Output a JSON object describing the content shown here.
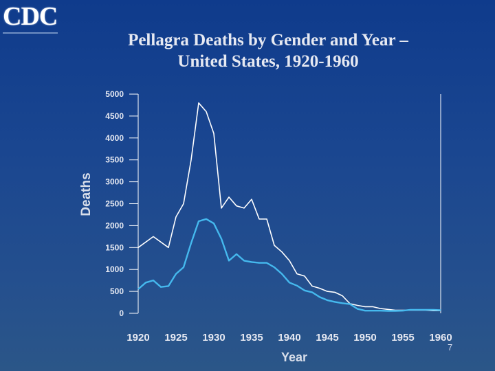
{
  "logo": {
    "text": "CDC"
  },
  "page_number": "7",
  "colors": {
    "background": "#1a4690",
    "male_line": "#ffffff",
    "female_line": "#45b9ee",
    "axis": "#ffffff"
  },
  "chart_data": {
    "type": "line",
    "title": "Pellagra Deaths by Gender and Year –",
    "subtitle": "United States, 1920-1960",
    "xlabel": "Year",
    "ylabel": "Deaths",
    "xlim": [
      1920,
      1960
    ],
    "ylim": [
      0,
      5000
    ],
    "x_ticks": [
      1920,
      1925,
      1930,
      1935,
      1940,
      1945,
      1950,
      1955,
      1960
    ],
    "y_ticks": [
      0,
      500,
      1000,
      1500,
      2000,
      2500,
      3000,
      3500,
      4000,
      4500,
      5000
    ],
    "grid": false,
    "legend": "none",
    "series": [
      {
        "color": "#ffffff",
        "x": [
          1920,
          1922,
          1924,
          1925,
          1926,
          1927,
          1928,
          1929,
          1930,
          1931,
          1932,
          1933,
          1934,
          1935,
          1936,
          1937,
          1938,
          1939,
          1940,
          1941,
          1942,
          1943,
          1944,
          1945,
          1946,
          1947,
          1948,
          1949,
          1950,
          1951,
          1952,
          1953,
          1954,
          1955,
          1956,
          1957,
          1958,
          1959,
          1960
        ],
        "values": [
          1500,
          1750,
          1500,
          2200,
          2500,
          3500,
          4800,
          4600,
          4100,
          2400,
          2650,
          2450,
          2400,
          2600,
          2150,
          2150,
          1550,
          1400,
          1200,
          900,
          850,
          620,
          570,
          500,
          480,
          400,
          220,
          180,
          150,
          150,
          110,
          90,
          70,
          70,
          70,
          70,
          70,
          60,
          60
        ]
      },
      {
        "color": "#45b9ee",
        "x": [
          1920,
          1921,
          1922,
          1923,
          1924,
          1925,
          1926,
          1927,
          1928,
          1929,
          1930,
          1931,
          1932,
          1933,
          1934,
          1935,
          1936,
          1937,
          1938,
          1939,
          1940,
          1941,
          1942,
          1943,
          1944,
          1945,
          1946,
          1947,
          1948,
          1949,
          1950,
          1951,
          1952,
          1953,
          1954,
          1955,
          1956,
          1957,
          1958,
          1959,
          1960
        ],
        "values": [
          550,
          700,
          750,
          600,
          620,
          900,
          1050,
          1600,
          2100,
          2150,
          2050,
          1700,
          1200,
          1350,
          1200,
          1170,
          1150,
          1150,
          1050,
          900,
          700,
          630,
          520,
          480,
          370,
          300,
          260,
          230,
          210,
          100,
          60,
          60,
          60,
          55,
          55,
          60,
          80,
          80,
          80,
          80,
          70
        ]
      }
    ]
  }
}
